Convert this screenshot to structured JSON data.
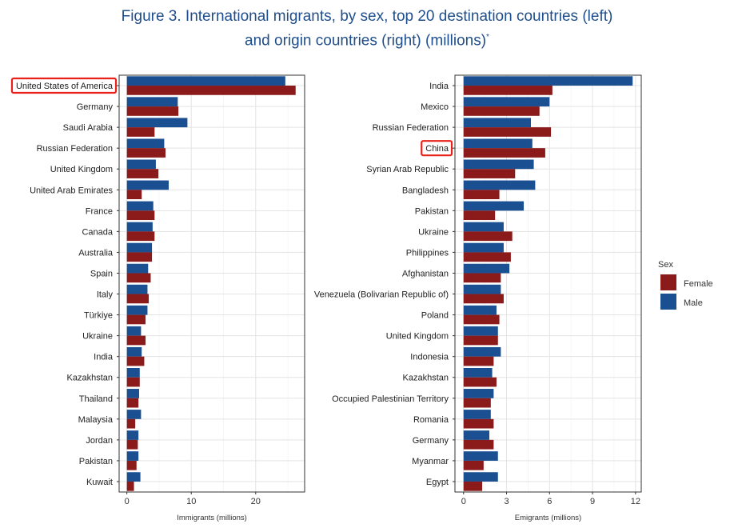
{
  "title": {
    "line1": "Figure 3. International migrants, by sex, top 20 destination countries (left)",
    "line2": "and origin countries (right) (millions)",
    "footnote_mark": "*"
  },
  "colors": {
    "female": "#8b1a1a",
    "male": "#1a4f91",
    "highlight": "#e8221a"
  },
  "legend": {
    "title": "Sex",
    "entries": [
      "Female",
      "Male"
    ]
  },
  "chart_data": [
    {
      "type": "bar",
      "orientation": "horizontal",
      "xlabel": "Immigrants (millions)",
      "xlim": [
        -1.2,
        27.6
      ],
      "xticks": [
        0,
        10,
        20
      ],
      "highlighted_category": "United States of America",
      "categories": [
        "United States of America",
        "Germany",
        "Saudi Arabia",
        "Russian Federation",
        "United Kingdom",
        "United Arab Emirates",
        "France",
        "Canada",
        "Australia",
        "Spain",
        "Italy",
        "Türkiye",
        "Ukraine",
        "India",
        "Kazakhstan",
        "Thailand",
        "Malaysia",
        "Jordan",
        "Pakistan",
        "Kuwait"
      ],
      "series": [
        {
          "name": "Male",
          "values": [
            24.6,
            7.9,
            9.4,
            5.8,
            4.5,
            6.5,
            4.1,
            4.0,
            3.9,
            3.3,
            3.2,
            3.2,
            2.2,
            2.3,
            2.0,
            1.9,
            2.2,
            1.8,
            1.8,
            2.1
          ]
        },
        {
          "name": "Female",
          "values": [
            26.2,
            8.0,
            4.3,
            6.0,
            4.9,
            2.3,
            4.3,
            4.3,
            3.9,
            3.7,
            3.4,
            2.9,
            2.9,
            2.7,
            2.0,
            1.8,
            1.3,
            1.7,
            1.5,
            1.1
          ]
        }
      ]
    },
    {
      "type": "bar",
      "orientation": "horizontal",
      "xlabel": "Emigrants (millions)",
      "xlim": [
        -0.6,
        12.4
      ],
      "xticks": [
        0,
        3,
        6,
        9,
        12
      ],
      "highlighted_category": "China",
      "categories": [
        "India",
        "Mexico",
        "Russian Federation",
        "China",
        "Syrian Arab Republic",
        "Bangladesh",
        "Pakistan",
        "Ukraine",
        "Philippines",
        "Afghanistan",
        "Venezuela (Bolivarian Republic of)",
        "Poland",
        "United Kingdom",
        "Indonesia",
        "Kazakhstan",
        "Occupied Palestinian Territory",
        "Romania",
        "Germany",
        "Myanmar",
        "Egypt"
      ],
      "series": [
        {
          "name": "Male",
          "values": [
            11.8,
            6.0,
            4.7,
            4.8,
            4.9,
            5.0,
            4.2,
            2.8,
            2.8,
            3.2,
            2.6,
            2.3,
            2.4,
            2.6,
            2.0,
            2.1,
            1.9,
            1.8,
            2.4,
            2.4
          ]
        },
        {
          "name": "Female",
          "values": [
            6.2,
            5.3,
            6.1,
            5.7,
            3.6,
            2.5,
            2.2,
            3.4,
            3.3,
            2.6,
            2.8,
            2.5,
            2.4,
            2.1,
            2.3,
            1.9,
            2.1,
            2.1,
            1.4,
            1.3
          ]
        }
      ]
    }
  ]
}
